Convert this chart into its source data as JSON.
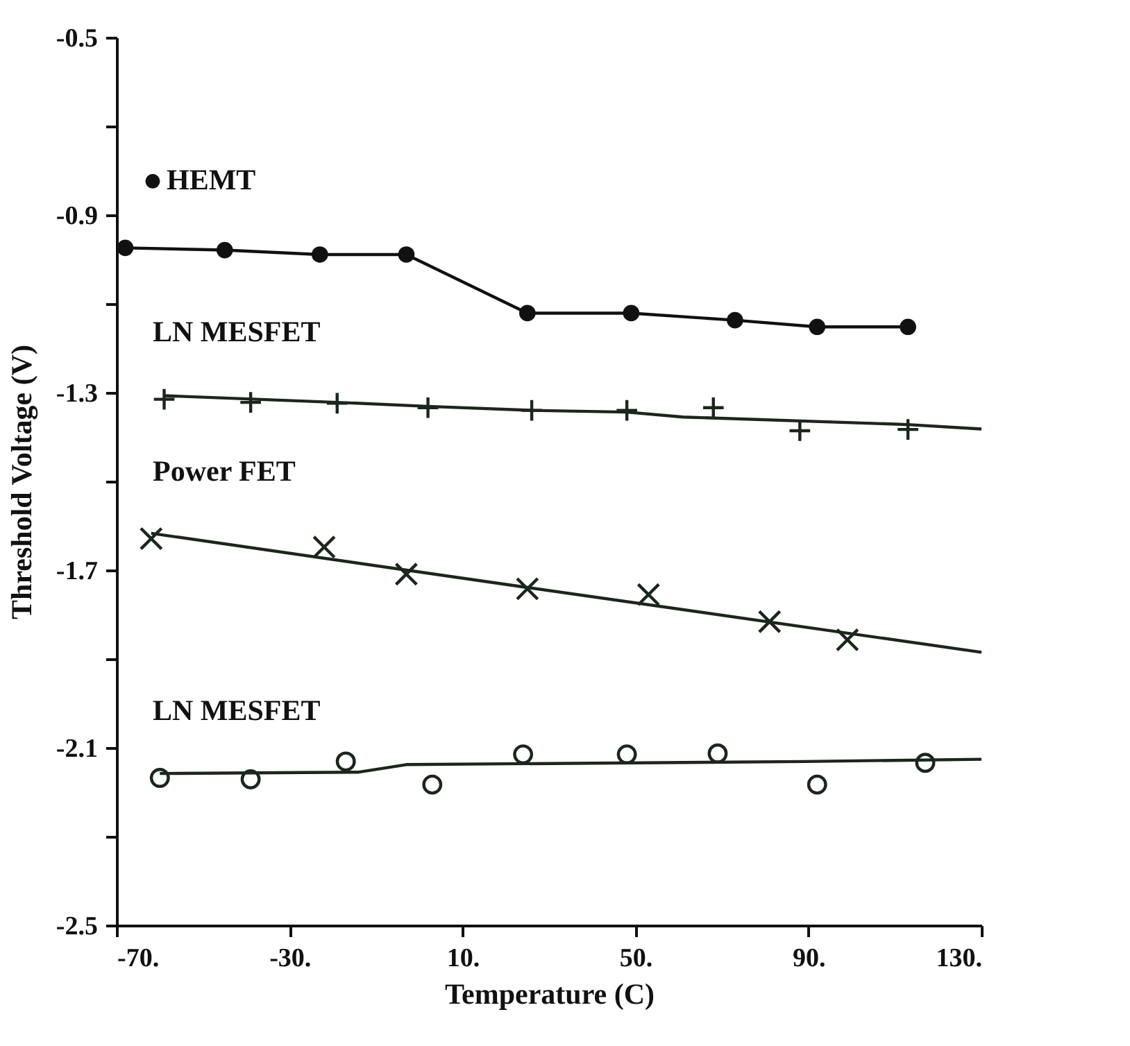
{
  "chart_data": {
    "type": "line",
    "xlabel": "Temperature (C)",
    "ylabel": "Threshold Voltage (V)",
    "xlim": [
      -70,
      130
    ],
    "xticks": [
      {
        "value": -70,
        "label": "-70."
      },
      {
        "value": -30,
        "label": "-30."
      },
      {
        "value": 10,
        "label": "10."
      },
      {
        "value": 50,
        "label": "50."
      },
      {
        "value": 90,
        "label": "90."
      },
      {
        "value": 130,
        "label": "130."
      }
    ],
    "ylim": [
      -2.5,
      -0.5
    ],
    "yticks": [
      -0.5,
      {
        "value": -0.7,
        "label": null
      },
      -0.9,
      {
        "value": -1.1,
        "label": null
      },
      -1.3,
      {
        "value": -1.5,
        "label": null
      },
      -1.7,
      {
        "value": -1.9,
        "label": null
      },
      -2.1,
      {
        "value": -2.3,
        "label": null
      },
      -2.5
    ],
    "grid": false,
    "legend": "top left",
    "series": [
      {
        "name": "HEMT",
        "marker": "circle",
        "color": "#111111",
        "x": [
          -68,
          -45,
          -23,
          -3,
          25,
          49,
          73,
          92,
          113
        ],
        "values": [
          -0.974,
          -0.979,
          -0.989,
          -0.989,
          -1.121,
          -1.121,
          -1.137,
          -1.152,
          -1.152
        ]
      },
      {
        "name": "LN MESFET",
        "type": "scatter",
        "marker": "cross",
        "color": "#1c261c",
        "x": [
          -59,
          -39,
          -19,
          2,
          26,
          48,
          68,
          88,
          113
        ],
        "values": [
          -1.315,
          -1.322,
          -1.324,
          -1.334,
          -1.34,
          -1.34,
          -1.334,
          -1.386,
          -1.383
        ]
      },
      {
        "type": "line",
        "marker": "none",
        "color": "#1c261c",
        "x": [
          -59,
          -19,
          2,
          26,
          48,
          61,
          113,
          130
        ],
        "values": [
          -1.307,
          -1.322,
          -1.331,
          -1.34,
          -1.344,
          -1.355,
          -1.372,
          -1.382
        ]
      },
      {
        "name": "Power FET",
        "type": "scatter",
        "marker": "x",
        "color": "#1c261c",
        "x": [
          -62,
          -22,
          -3,
          25,
          53,
          81,
          99
        ],
        "values": [
          -1.629,
          -1.648,
          -1.709,
          -1.742,
          -1.755,
          -1.816,
          -1.857
        ]
      },
      {
        "type": "line",
        "marker": "none",
        "color": "#1c261c",
        "x": [
          -62,
          25,
          130
        ],
        "values": [
          -1.617,
          -1.739,
          -1.885
        ]
      },
      {
        "name": "LN MESFET",
        "type": "scatter",
        "marker": "circle",
        "color": "#1c261c",
        "x": [
          -60,
          -39,
          -17,
          3,
          24,
          48,
          69,
          92,
          117
        ],
        "values": [
          -2.168,
          -2.171,
          -2.131,
          -2.183,
          -2.115,
          -2.115,
          -2.113,
          -2.183,
          -2.134
        ]
      },
      {
        "type": "line",
        "marker": "none",
        "color": "#1c261c",
        "x": [
          -60,
          -14,
          -3,
          89,
          130
        ],
        "values": [
          -2.158,
          -2.155,
          -2.138,
          -2.131,
          -2.126
        ]
      }
    ]
  }
}
